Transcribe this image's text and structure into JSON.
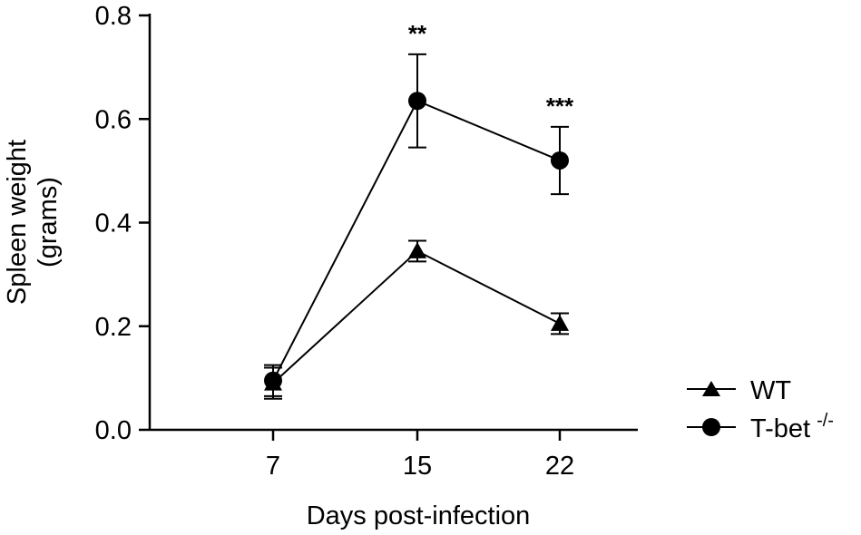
{
  "chart_data": {
    "type": "line",
    "xlabel": "Days post-infection",
    "ylabel_lines": [
      "Spleen weight",
      "(grams)"
    ],
    "x": [
      7,
      15,
      22
    ],
    "x_ticks": [
      "7",
      "15",
      "22"
    ],
    "y_ticks": [
      "0.0",
      "0.2",
      "0.4",
      "0.6",
      "0.8"
    ],
    "ylim": [
      0,
      0.8
    ],
    "grid": false,
    "legend_position": "bottom-right",
    "series": [
      {
        "name": "WT",
        "marker": "triangle",
        "values": [
          0.09,
          0.345,
          0.205
        ],
        "errors": [
          0.03,
          0.02,
          0.02
        ]
      },
      {
        "name": "T-bet",
        "name_superscript": "-/-",
        "marker": "circle",
        "values": [
          0.095,
          0.635,
          0.52
        ],
        "errors": [
          0.03,
          0.09,
          0.065
        ]
      }
    ],
    "annotations": [
      {
        "x": 15,
        "text": "**"
      },
      {
        "x": 22,
        "text": "***"
      }
    ]
  }
}
